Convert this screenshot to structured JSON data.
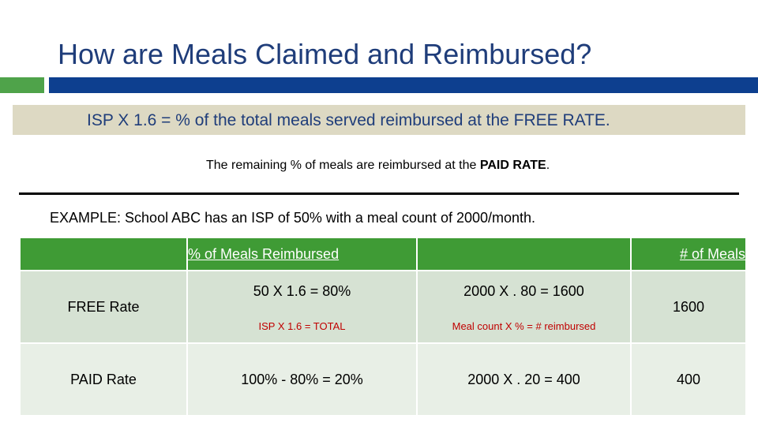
{
  "title": "How are Meals Claimed and Reimbursed?",
  "formula": "ISP X 1.6 = % of the total meals served reimbursed at the FREE RATE.",
  "remaining": {
    "prefix": "The remaining % of meals are reimbursed at the ",
    "bold": "PAID RATE",
    "suffix": "."
  },
  "example": "EXAMPLE: School ABC has an ISP of 50% with a meal count of 2000/month.",
  "table": {
    "headers": {
      "col1": "",
      "col2": "% of Meals Reimbursed",
      "col3": "",
      "col4": "# of Meals"
    },
    "free": {
      "label": "FREE Rate",
      "pct_main": "50 X 1.6 = 80%",
      "pct_sub": "ISP X 1.6 = TOTAL",
      "calc_main": "2000 X . 80 = 1600",
      "calc_sub": "Meal count X % = # reimbursed",
      "meals": "1600"
    },
    "paid": {
      "label": "PAID Rate",
      "pct_main": "100% - 80% = 20%",
      "calc_main": "2000 X . 20 = 400",
      "meals": "400"
    }
  },
  "colors": {
    "title": "#1f3d7a",
    "accent_green": "#4fa34a",
    "accent_blue": "#0d3f8f",
    "formula_bg": "#ddd9c3",
    "table_header": "#3f9b35",
    "note_red": "#c00000"
  }
}
